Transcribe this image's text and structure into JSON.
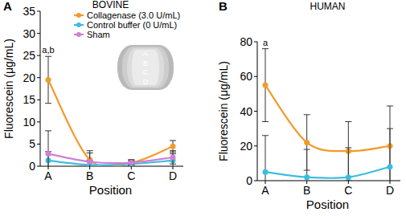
{
  "chart_data": [
    {
      "type": "line",
      "panel_label": "A",
      "title": "BOVINE",
      "x_label": "Position",
      "y_label": "Fluorescein (μg/mL)",
      "categories": [
        "A",
        "B",
        "C",
        "D"
      ],
      "series": [
        {
          "name": "Collagenase (3.0 U/mL)",
          "color": "#f39a2b",
          "marker": "circle",
          "values": [
            19.5,
            1.5,
            0.8,
            4.5
          ],
          "errors": [
            5.3,
            2.0,
            0.7,
            1.3
          ]
        },
        {
          "name": "Control buffer (0 U/mL)",
          "color": "#3cbde0",
          "marker": "circle",
          "values": [
            1.3,
            0.3,
            0.5,
            1.3
          ],
          "errors": [
            2.0,
            1.0,
            0.7,
            1.5
          ]
        },
        {
          "name": "Sham",
          "color": "#cf7fd6",
          "marker": "circle",
          "values": [
            2.8,
            1.0,
            0.8,
            2.0
          ],
          "errors": [
            5.2,
            2.0,
            0.5,
            1.5
          ]
        }
      ],
      "ylim": [
        0,
        35
      ],
      "yticks": [
        0,
        5,
        10,
        15,
        20,
        25,
        30,
        35
      ],
      "legend": "upper right",
      "annotations": [
        {
          "text": "a,b",
          "category": "A"
        }
      ],
      "inset_labels": [
        "A",
        "B",
        "C",
        "D"
      ]
    },
    {
      "type": "line",
      "panel_label": "B",
      "title": "HUMAN",
      "x_label": "Position",
      "y_label": "Fluorescein (μg/mL)",
      "categories": [
        "A",
        "B",
        "C",
        "D"
      ],
      "series": [
        {
          "color": "#f39a2b",
          "marker": "circle",
          "values": [
            55,
            22,
            17,
            20
          ],
          "errors": [
            21,
            16,
            17,
            23
          ]
        },
        {
          "color": "#3cbde0",
          "marker": "circle",
          "values": [
            5,
            2,
            2,
            8
          ],
          "errors": [
            21,
            16,
            17,
            22
          ]
        }
      ],
      "ylim": [
        0,
        80
      ],
      "yticks": [
        0,
        20,
        40,
        60,
        80
      ],
      "annotations": [
        {
          "text": "a",
          "category": "A"
        }
      ]
    }
  ]
}
